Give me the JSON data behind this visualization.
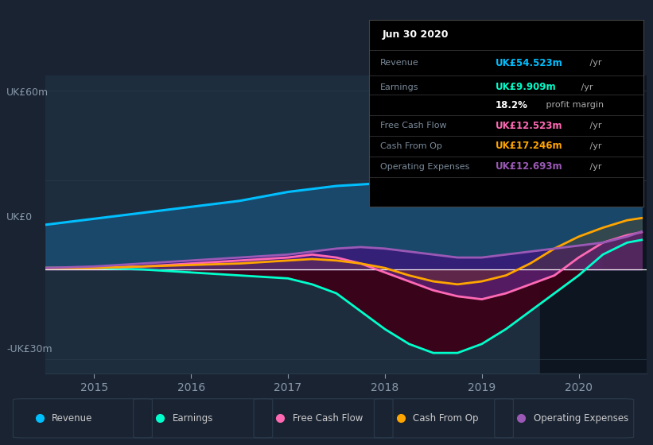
{
  "bg_color": "#1a2332",
  "chart_bg_color": "#1e2d3d",
  "ylim_min": -35,
  "ylim_max": 65,
  "y_label_top": "UK£60m",
  "y_label_mid": "UK£0",
  "y_label_bot": "-UK£30m",
  "x_ticks": [
    2015,
    2016,
    2017,
    2018,
    2019,
    2020
  ],
  "years": [
    2014.5,
    2015.0,
    2015.5,
    2016.0,
    2016.5,
    2017.0,
    2017.25,
    2017.5,
    2017.75,
    2018.0,
    2018.25,
    2018.5,
    2018.75,
    2019.0,
    2019.25,
    2019.5,
    2019.75,
    2020.0,
    2020.25,
    2020.5,
    2020.65
  ],
  "revenue": [
    15,
    17,
    19,
    21,
    23,
    26,
    27,
    28,
    28.5,
    29,
    30,
    32,
    35,
    39,
    42,
    45,
    48,
    51,
    53,
    54.5,
    54.523
  ],
  "earnings": [
    0.5,
    0.5,
    0,
    -1,
    -2,
    -3,
    -5,
    -8,
    -14,
    -20,
    -25,
    -28,
    -28,
    -25,
    -20,
    -14,
    -8,
    -2,
    5,
    9,
    9.909
  ],
  "free_cash_flow": [
    0.5,
    0.5,
    1,
    2,
    3,
    4,
    5,
    4,
    2,
    -1,
    -4,
    -7,
    -9,
    -10,
    -8,
    -5,
    -2,
    4,
    9,
    11.5,
    12.523
  ],
  "cash_from_op": [
    0.5,
    0.5,
    1,
    1.5,
    2,
    3,
    3.5,
    3,
    2,
    0.5,
    -2,
    -4,
    -5,
    -4,
    -2,
    2,
    7,
    11,
    14,
    16.5,
    17.246
  ],
  "operating_expenses": [
    0.5,
    1,
    2,
    3,
    4,
    5,
    6,
    7,
    7.5,
    7,
    6,
    5,
    4,
    4,
    5,
    6,
    7,
    8,
    9,
    11,
    12.693
  ],
  "revenue_color": "#00bfff",
  "earnings_color": "#00ffcc",
  "fcf_color": "#ff69b4",
  "cfop_color": "#ffa500",
  "opex_color": "#9b59b6",
  "legend_items": [
    "Revenue",
    "Earnings",
    "Free Cash Flow",
    "Cash From Op",
    "Operating Expenses"
  ],
  "legend_colors": [
    "#00bfff",
    "#00ffcc",
    "#ff69b4",
    "#ffa500",
    "#9b59b6"
  ],
  "tooltip_title": "Jun 30 2020",
  "tooltip_rows": [
    {
      "label": "Revenue",
      "value": "UK£54.523m",
      "suffix": " /yr",
      "color": "#00bfff"
    },
    {
      "label": "Earnings",
      "value": "UK£9.909m",
      "suffix": " /yr",
      "color": "#00ffcc"
    },
    {
      "label": "",
      "value": "18.2%",
      "suffix": " profit margin",
      "color": "#ffffff"
    },
    {
      "label": "Free Cash Flow",
      "value": "UK£12.523m",
      "suffix": " /yr",
      "color": "#ff69b4"
    },
    {
      "label": "Cash From Op",
      "value": "UK£17.246m",
      "suffix": " /yr",
      "color": "#ffa500"
    },
    {
      "label": "Operating Expenses",
      "value": "UK£12.693m",
      "suffix": " /yr",
      "color": "#9b59b6"
    }
  ]
}
